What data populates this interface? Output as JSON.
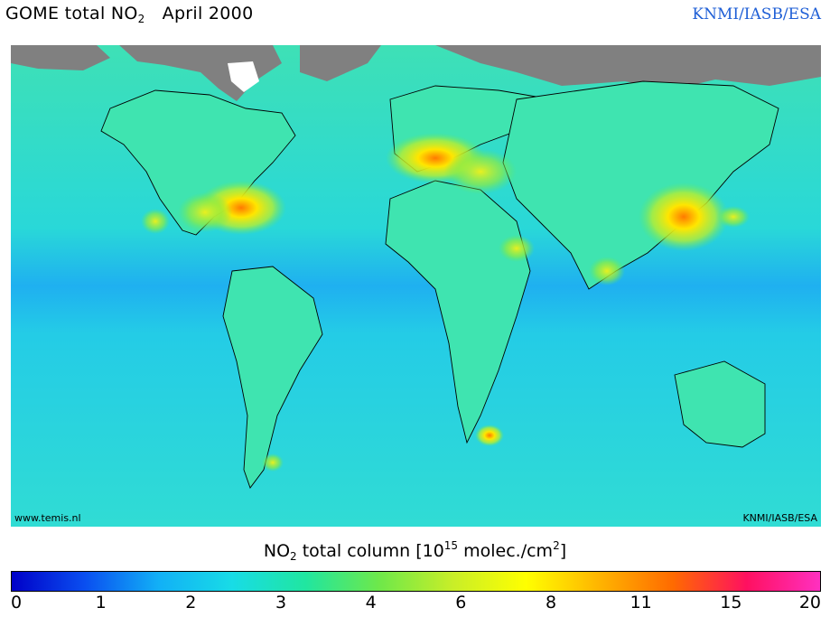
{
  "header": {
    "title_main": "GOME total NO",
    "title_sub": "2",
    "title_period": "April 2000",
    "credit": "KNMI/IASB/ESA"
  },
  "map": {
    "left_tag": "www.temis.nl",
    "right_tag": "KNMI/IASB/ESA",
    "ocean_color": "#2fd4d4",
    "land_color": "#40e8a8",
    "nodata_color": "#808080"
  },
  "colorbar": {
    "label_pre": "NO",
    "label_sub": "2",
    "label_mid": " total column [10",
    "label_sup": "15",
    "label_post": " molec./cm",
    "label_sup2": "2",
    "label_end": "]",
    "tick_labels": [
      "0",
      "1",
      "2",
      "3",
      "4",
      "6",
      "8",
      "11",
      "15",
      "20"
    ],
    "colors": [
      "#0000c8",
      "#0a4ff0",
      "#12b0f6",
      "#18dce6",
      "#20e6a0",
      "#6ee84a",
      "#c8ee28",
      "#ffff00",
      "#ffb400",
      "#ff6a00",
      "#ff1060",
      "#ff30c0"
    ]
  }
}
